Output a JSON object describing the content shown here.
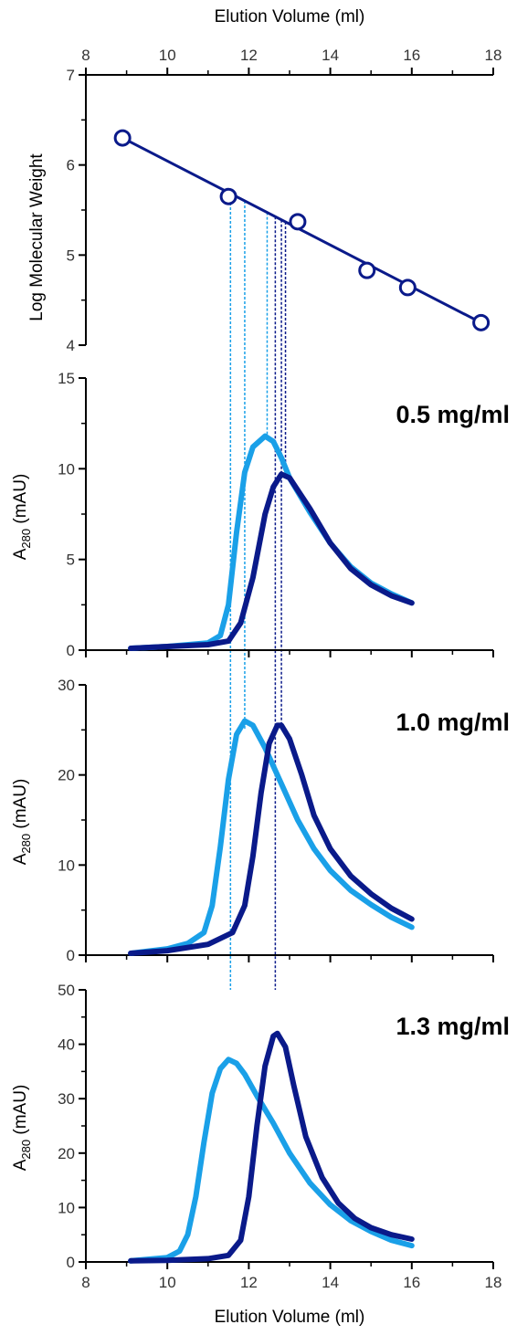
{
  "colors": {
    "light": "#1aa0e8",
    "dark": "#0a1a8a",
    "axis": "#000000"
  },
  "top_axis": {
    "label": "Elution Volume (ml)"
  },
  "bottom_axis": {
    "label": "Elution Volume (ml)"
  },
  "chart_data": [
    {
      "type": "scatter",
      "panel": "calibration",
      "ylabel": "Log Molecular Weight",
      "xlabel": "Elution Volume (ml)",
      "xlim": [
        8,
        18
      ],
      "ylim": [
        4,
        7
      ],
      "xticks": [
        8,
        10,
        12,
        14,
        16,
        18
      ],
      "yticks": [
        4,
        5,
        6,
        7
      ],
      "points": {
        "x": [
          8.9,
          11.5,
          13.2,
          14.9,
          15.9,
          17.7
        ],
        "y": [
          6.3,
          5.65,
          5.37,
          4.83,
          4.64,
          4.25
        ]
      },
      "fit": {
        "x": [
          8.9,
          17.7
        ],
        "y": [
          6.3,
          4.25
        ]
      },
      "grid": false
    },
    {
      "type": "line",
      "panel_label": "0.5 mg/ml",
      "ylabel_main": "A",
      "ylabel_sub": "280",
      "ylabel_unit": " (mAU)",
      "xlim": [
        8,
        18
      ],
      "ylim": [
        0,
        15
      ],
      "yticks": [
        0,
        5,
        10,
        15
      ],
      "series": [
        {
          "color": "light",
          "x": [
            9.1,
            10,
            11,
            11.3,
            11.5,
            11.7,
            11.9,
            12.1,
            12.4,
            12.6,
            12.8,
            13.0,
            13.5,
            14.0,
            14.5,
            15.0,
            15.5,
            16.0
          ],
          "y": [
            0.1,
            0.2,
            0.4,
            0.8,
            2.5,
            6.5,
            9.8,
            11.2,
            11.8,
            11.5,
            10.6,
            9.5,
            7.6,
            5.9,
            4.6,
            3.7,
            3.1,
            2.6
          ]
        },
        {
          "color": "dark",
          "x": [
            9.1,
            10,
            11,
            11.5,
            11.8,
            12.1,
            12.4,
            12.6,
            12.8,
            13.0,
            13.5,
            14.0,
            14.5,
            15.0,
            15.5,
            16.0
          ],
          "y": [
            0.1,
            0.2,
            0.3,
            0.5,
            1.5,
            4.0,
            7.5,
            9.0,
            9.7,
            9.5,
            7.8,
            5.9,
            4.5,
            3.6,
            3.0,
            2.6
          ]
        }
      ]
    },
    {
      "type": "line",
      "panel_label": "1.0 mg/ml",
      "ylabel_main": "A",
      "ylabel_sub": "280",
      "ylabel_unit": " (mAU)",
      "xlim": [
        8,
        18
      ],
      "ylim": [
        0,
        30
      ],
      "yticks": [
        0,
        10,
        20,
        30
      ],
      "series": [
        {
          "color": "light",
          "x": [
            9.1,
            10,
            10.5,
            10.9,
            11.1,
            11.3,
            11.5,
            11.7,
            11.9,
            12.1,
            12.4,
            12.8,
            13.2,
            13.6,
            14.0,
            14.5,
            15.0,
            15.5,
            16.0
          ],
          "y": [
            0.2,
            0.7,
            1.3,
            2.5,
            5.5,
            12.0,
            19.5,
            24.5,
            26.0,
            25.5,
            23.0,
            19.0,
            15.0,
            11.8,
            9.4,
            7.2,
            5.6,
            4.2,
            3.1
          ]
        },
        {
          "color": "dark",
          "x": [
            9.1,
            10,
            11,
            11.6,
            11.9,
            12.1,
            12.3,
            12.5,
            12.7,
            12.8,
            13.0,
            13.3,
            13.6,
            14.0,
            14.5,
            15.0,
            15.5,
            16.0
          ],
          "y": [
            0.2,
            0.5,
            1.2,
            2.5,
            5.5,
            11.0,
            18.0,
            23.5,
            25.5,
            25.5,
            24.0,
            20.0,
            15.5,
            11.8,
            8.8,
            6.8,
            5.2,
            4.0
          ]
        }
      ]
    },
    {
      "type": "line",
      "panel_label": "1.3 mg/ml",
      "ylabel_main": "A",
      "ylabel_sub": "280",
      "ylabel_unit": " (mAU)",
      "xlabel": "Elution Volume (ml)",
      "xlim": [
        8,
        18
      ],
      "ylim": [
        0,
        50
      ],
      "yticks": [
        0,
        10,
        20,
        30,
        40,
        50
      ],
      "xticks": [
        8,
        10,
        12,
        14,
        16,
        18
      ],
      "series": [
        {
          "color": "light",
          "x": [
            9.1,
            10,
            10.3,
            10.5,
            10.7,
            10.9,
            11.1,
            11.3,
            11.5,
            11.7,
            11.9,
            12.2,
            12.6,
            13.0,
            13.5,
            14.0,
            14.5,
            15.0,
            15.5,
            16.0
          ],
          "y": [
            0.2,
            0.8,
            2.0,
            5.0,
            12.0,
            22.0,
            31.0,
            35.5,
            37.2,
            36.5,
            34.5,
            30.5,
            25.5,
            20.0,
            14.5,
            10.5,
            7.6,
            5.6,
            4.0,
            3.0
          ]
        },
        {
          "color": "dark",
          "x": [
            9.1,
            10,
            11,
            11.5,
            11.8,
            12.0,
            12.2,
            12.4,
            12.6,
            12.7,
            12.9,
            13.1,
            13.4,
            13.8,
            14.2,
            14.6,
            15.0,
            15.5,
            16.0
          ],
          "y": [
            0.2,
            0.3,
            0.6,
            1.2,
            4.0,
            12.0,
            25.0,
            36.0,
            41.5,
            42.0,
            39.5,
            32.5,
            23.0,
            15.5,
            10.8,
            8.0,
            6.3,
            5.0,
            4.2
          ]
        }
      ]
    }
  ],
  "guides": {
    "light": [
      11.55,
      11.9,
      12.45
    ],
    "dark": [
      12.65,
      12.8,
      12.9
    ]
  }
}
